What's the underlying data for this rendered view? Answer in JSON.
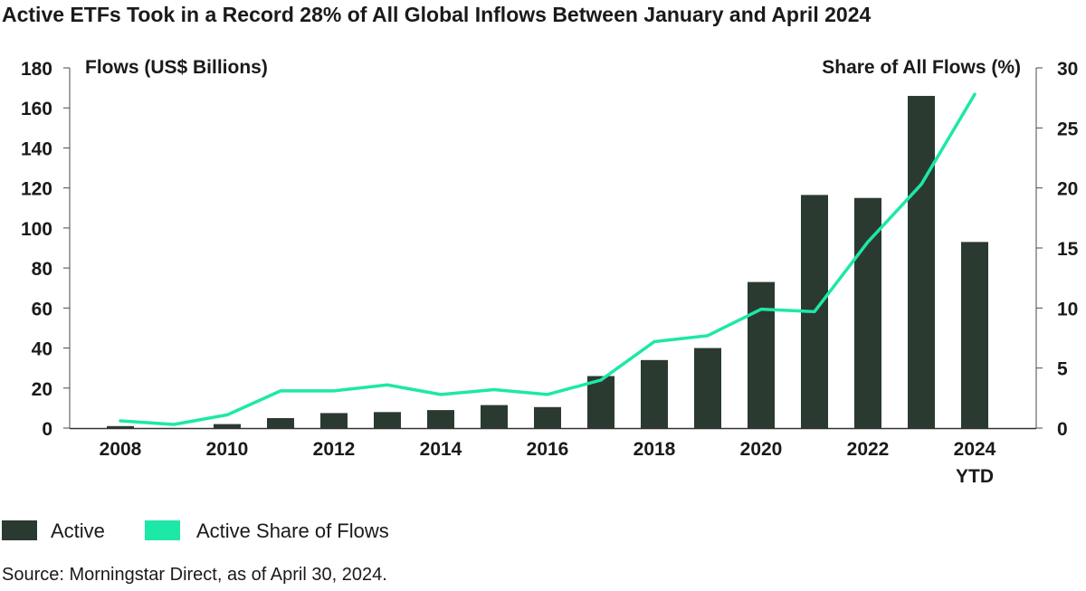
{
  "chart_data": {
    "type": "bar",
    "title": "Active ETFs Took in a Record 28% of All Global Inflows Between January and April 2024",
    "ylabel_left": "Flows (US$ Billions)",
    "ylabel_right": "Share of All Flows (%)",
    "x": [
      2008,
      2009,
      2010,
      2011,
      2012,
      2013,
      2014,
      2015,
      2016,
      2017,
      2018,
      2019,
      2020,
      2021,
      2022,
      2023,
      2024
    ],
    "xtick_labels": [
      "2008",
      "2010",
      "2012",
      "2014",
      "2016",
      "2018",
      "2020",
      "2022",
      "2024"
    ],
    "xtick_positions": [
      2008,
      2010,
      2012,
      2014,
      2016,
      2018,
      2020,
      2022,
      2024
    ],
    "last_tick_sublabel": "YTD",
    "ylim_left": [
      0,
      180
    ],
    "yticks_left": [
      0,
      20,
      40,
      60,
      80,
      100,
      120,
      140,
      160,
      180
    ],
    "ylim_right": [
      0,
      30
    ],
    "yticks_right": [
      0,
      5,
      10,
      15,
      20,
      25,
      30
    ],
    "series": [
      {
        "name": "Active",
        "kind": "bar",
        "axis": "left",
        "color": "#2b3a31",
        "values": [
          1,
          0,
          2,
          5,
          7.5,
          8,
          9,
          11.5,
          10.5,
          26,
          34,
          40,
          73,
          116.5,
          115,
          166,
          93
        ]
      },
      {
        "name": "Active Share of Flows",
        "kind": "line",
        "axis": "right",
        "color": "#1de8a8",
        "values": [
          0.6,
          0.3,
          1.1,
          3.1,
          3.1,
          3.6,
          2.8,
          3.2,
          2.8,
          4.0,
          7.2,
          7.7,
          9.9,
          9.7,
          15.5,
          20.3,
          27.8
        ]
      }
    ],
    "legend": {
      "placement": "bottom-left",
      "items": [
        "Active",
        "Active Share of Flows"
      ]
    },
    "source": "Source: Morningstar Direct, as of April 30, 2024.",
    "grid": false
  }
}
